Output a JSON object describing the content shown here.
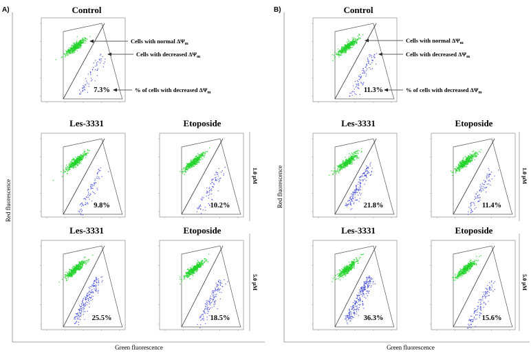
{
  "figure": {
    "panel_letters": [
      "A)",
      "B)"
    ],
    "x_axis_label": "Green fluorescence",
    "y_axis_label": "Red fluorescence",
    "annotations": {
      "normal": "Cells with normal ΔΨ",
      "decreased": "Cells with decreased ΔΨ",
      "percent": "% of cells with decreased ΔΨ",
      "subscript": "m"
    },
    "concentrations": [
      "1.0 μM",
      "5.0 μM"
    ],
    "colors": {
      "normal_population": "#22d42a",
      "depolarized_population": "#2a37d6",
      "gate": "#555555"
    }
  },
  "chart_data": {
    "type": "scatter",
    "description_of_values": "percent of cells with decreased mitochondrial membrane potential",
    "panels": [
      {
        "figure": "A",
        "treatment": "Control",
        "concentration": "",
        "value": 7.3,
        "label": "7.3%"
      },
      {
        "figure": "A",
        "treatment": "Les-3331",
        "concentration": "1.0 μM",
        "value": 9.8,
        "label": "9.8%"
      },
      {
        "figure": "A",
        "treatment": "Etoposide",
        "concentration": "1.0 μM",
        "value": 10.2,
        "label": "10.2%"
      },
      {
        "figure": "A",
        "treatment": "Les-3331",
        "concentration": "5.0 μM",
        "value": 25.5,
        "label": "25.5%"
      },
      {
        "figure": "A",
        "treatment": "Etoposide",
        "concentration": "5.0 μM",
        "value": 18.5,
        "label": "18.5%"
      },
      {
        "figure": "B",
        "treatment": "Control",
        "concentration": "",
        "value": 11.3,
        "label": "11.3%"
      },
      {
        "figure": "B",
        "treatment": "Les-3331",
        "concentration": "1.0 μM",
        "value": 21.8,
        "label": "21.8%"
      },
      {
        "figure": "B",
        "treatment": "Etoposide",
        "concentration": "1.0 μM",
        "value": 11.4,
        "label": "11.4%"
      },
      {
        "figure": "B",
        "treatment": "Les-3331",
        "concentration": "5.0 μM",
        "value": 36.3,
        "label": "36.3%"
      },
      {
        "figure": "B",
        "treatment": "Etoposide",
        "concentration": "5.0 μM",
        "value": 15.6,
        "label": "15.6%"
      }
    ]
  }
}
